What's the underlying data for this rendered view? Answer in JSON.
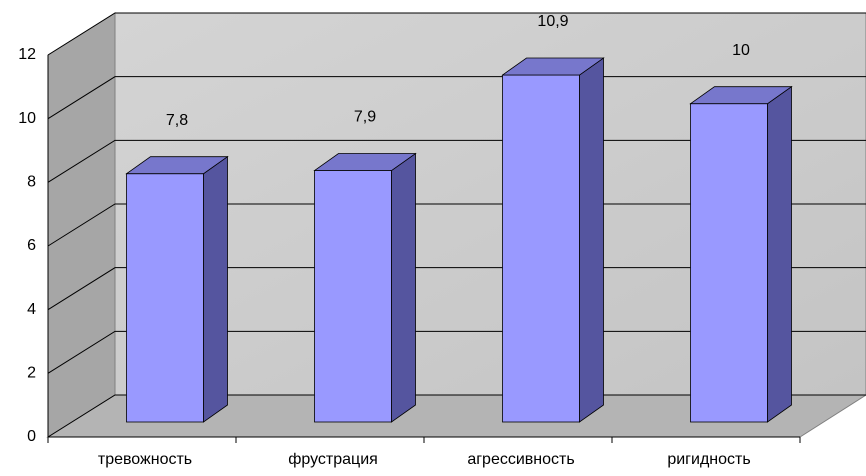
{
  "chart_data": {
    "type": "bar3d",
    "categories": [
      "тревожность",
      "фрустрация",
      "агрессивность",
      "ригидность"
    ],
    "values": [
      7.8,
      7.9,
      10.9,
      10
    ],
    "value_labels": [
      "7,8",
      "7,9",
      "10,9",
      "10"
    ],
    "color": "#9999ff",
    "ylim": [
      0,
      12
    ],
    "yticks": [
      0,
      2,
      4,
      6,
      8,
      10,
      12
    ],
    "grid": true
  }
}
